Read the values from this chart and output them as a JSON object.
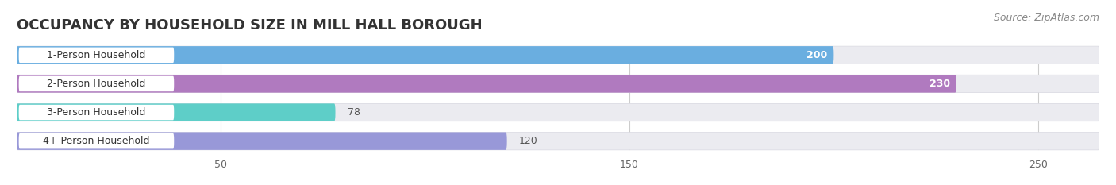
{
  "title": "OCCUPANCY BY HOUSEHOLD SIZE IN MILL HALL BOROUGH",
  "source": "Source: ZipAtlas.com",
  "categories": [
    "1-Person Household",
    "2-Person Household",
    "3-Person Household",
    "4+ Person Household"
  ],
  "values": [
    200,
    230,
    78,
    120
  ],
  "bar_colors": [
    "#6aaee0",
    "#b07abf",
    "#5ecec8",
    "#9898d8"
  ],
  "label_inside": [
    true,
    true,
    false,
    false
  ],
  "data_max": 250,
  "xlim_max": 265,
  "xticks": [
    50,
    150,
    250
  ],
  "background_color": "#ffffff",
  "bar_bg_color": "#ebebf0",
  "white_pill_color": "#ffffff",
  "title_fontsize": 13,
  "source_fontsize": 9,
  "value_label_fontsize": 9,
  "category_fontsize": 9
}
